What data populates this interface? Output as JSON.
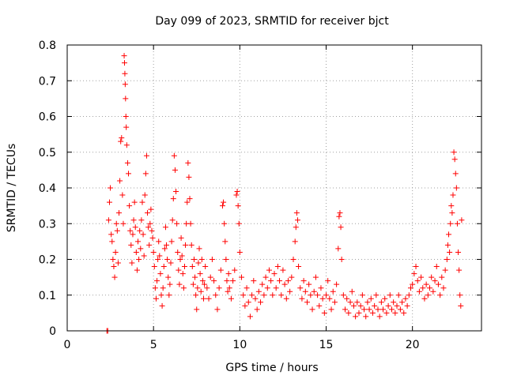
{
  "chart_data": {
    "type": "scatter",
    "title": "Day 099 of 2023, SRMTID for receiver bjct",
    "xlabel": "GPS time / hours",
    "ylabel": "SRMTID / TECUs",
    "xlim": [
      0,
      24
    ],
    "ylim": [
      0,
      0.8
    ],
    "xticks": [
      0,
      5,
      10,
      15,
      20
    ],
    "yticks": [
      0,
      0.1,
      0.2,
      0.3,
      0.4,
      0.5,
      0.6,
      0.7,
      0.8
    ],
    "xtick_labels": [
      "0",
      "5",
      "10",
      "15",
      "20"
    ],
    "ytick_labels": [
      "0",
      "0.1",
      "0.2",
      "0.3",
      "0.4",
      "0.5",
      "0.6",
      "0.7",
      "0.8"
    ],
    "grid": true,
    "marker": "+",
    "color": "#ff0000",
    "series": [
      {
        "name": "bjct",
        "points": [
          [
            2.3,
            0.0
          ],
          [
            2.35,
            0.0
          ],
          [
            2.4,
            0.31
          ],
          [
            2.45,
            0.36
          ],
          [
            2.5,
            0.4
          ],
          [
            2.55,
            0.27
          ],
          [
            2.6,
            0.25
          ],
          [
            2.65,
            0.2
          ],
          [
            2.7,
            0.18
          ],
          [
            2.75,
            0.15
          ],
          [
            2.8,
            0.22
          ],
          [
            2.85,
            0.3
          ],
          [
            2.9,
            0.28
          ],
          [
            2.95,
            0.19
          ],
          [
            3.0,
            0.33
          ],
          [
            3.05,
            0.42
          ],
          [
            3.1,
            0.53
          ],
          [
            3.15,
            0.54
          ],
          [
            3.2,
            0.38
          ],
          [
            3.25,
            0.3
          ],
          [
            3.3,
            0.77
          ],
          [
            3.32,
            0.75
          ],
          [
            3.34,
            0.72
          ],
          [
            3.36,
            0.69
          ],
          [
            3.38,
            0.65
          ],
          [
            3.4,
            0.6
          ],
          [
            3.42,
            0.57
          ],
          [
            3.45,
            0.52
          ],
          [
            3.5,
            0.47
          ],
          [
            3.55,
            0.44
          ],
          [
            3.6,
            0.35
          ],
          [
            3.65,
            0.28
          ],
          [
            3.7,
            0.24
          ],
          [
            3.75,
            0.19
          ],
          [
            3.8,
            0.27
          ],
          [
            3.85,
            0.31
          ],
          [
            3.9,
            0.36
          ],
          [
            3.95,
            0.29
          ],
          [
            4.0,
            0.22
          ],
          [
            4.05,
            0.17
          ],
          [
            4.1,
            0.25
          ],
          [
            4.15,
            0.2
          ],
          [
            4.2,
            0.28
          ],
          [
            4.25,
            0.23
          ],
          [
            4.3,
            0.31
          ],
          [
            4.35,
            0.36
          ],
          [
            4.4,
            0.27
          ],
          [
            4.45,
            0.21
          ],
          [
            4.5,
            0.38
          ],
          [
            4.55,
            0.44
          ],
          [
            4.6,
            0.49
          ],
          [
            4.65,
            0.33
          ],
          [
            4.7,
            0.29
          ],
          [
            4.75,
            0.24
          ],
          [
            4.8,
            0.3
          ],
          [
            4.85,
            0.34
          ],
          [
            4.9,
            0.28
          ],
          [
            4.95,
            0.26
          ],
          [
            5.0,
            0.22
          ],
          [
            5.05,
            0.18
          ],
          [
            5.1,
            0.12
          ],
          [
            5.15,
            0.09
          ],
          [
            5.2,
            0.14
          ],
          [
            5.25,
            0.2
          ],
          [
            5.3,
            0.25
          ],
          [
            5.35,
            0.21
          ],
          [
            5.4,
            0.16
          ],
          [
            5.45,
            0.1
          ],
          [
            5.5,
            0.07
          ],
          [
            5.55,
            0.12
          ],
          [
            5.6,
            0.18
          ],
          [
            5.65,
            0.23
          ],
          [
            5.7,
            0.29
          ],
          [
            5.75,
            0.24
          ],
          [
            5.8,
            0.2
          ],
          [
            5.85,
            0.15
          ],
          [
            5.9,
            0.1
          ],
          [
            5.95,
            0.13
          ],
          [
            6.0,
            0.19
          ],
          [
            6.05,
            0.25
          ],
          [
            6.1,
            0.31
          ],
          [
            6.15,
            0.37
          ],
          [
            6.2,
            0.49
          ],
          [
            6.25,
            0.45
          ],
          [
            6.3,
            0.39
          ],
          [
            6.35,
            0.3
          ],
          [
            6.4,
            0.22
          ],
          [
            6.45,
            0.17
          ],
          [
            6.5,
            0.13
          ],
          [
            6.55,
            0.2
          ],
          [
            6.6,
            0.26
          ],
          [
            6.65,
            0.21
          ],
          [
            6.7,
            0.16
          ],
          [
            6.75,
            0.12
          ],
          [
            6.8,
            0.18
          ],
          [
            6.85,
            0.24
          ],
          [
            6.9,
            0.3
          ],
          [
            6.95,
            0.36
          ],
          [
            7.0,
            0.47
          ],
          [
            7.05,
            0.43
          ],
          [
            7.1,
            0.37
          ],
          [
            7.15,
            0.3
          ],
          [
            7.2,
            0.24
          ],
          [
            7.25,
            0.18
          ],
          [
            7.3,
            0.13
          ],
          [
            7.35,
            0.2
          ],
          [
            7.4,
            0.15
          ],
          [
            7.45,
            0.1
          ],
          [
            7.5,
            0.06
          ],
          [
            7.55,
            0.12
          ],
          [
            7.6,
            0.19
          ],
          [
            7.65,
            0.23
          ],
          [
            7.7,
            0.16
          ],
          [
            7.75,
            0.11
          ],
          [
            7.8,
            0.2
          ],
          [
            7.85,
            0.14
          ],
          [
            7.9,
            0.09
          ],
          [
            7.95,
            0.13
          ],
          [
            8.0,
            0.18
          ],
          [
            8.1,
            0.12
          ],
          [
            8.2,
            0.09
          ],
          [
            8.3,
            0.15
          ],
          [
            8.4,
            0.2
          ],
          [
            8.5,
            0.14
          ],
          [
            8.6,
            0.1
          ],
          [
            8.7,
            0.06
          ],
          [
            8.8,
            0.12
          ],
          [
            8.9,
            0.17
          ],
          [
            9.0,
            0.35
          ],
          [
            9.05,
            0.36
          ],
          [
            9.1,
            0.3
          ],
          [
            9.15,
            0.25
          ],
          [
            9.2,
            0.2
          ],
          [
            9.25,
            0.14
          ],
          [
            9.3,
            0.11
          ],
          [
            9.35,
            0.16
          ],
          [
            9.4,
            0.12
          ],
          [
            9.5,
            0.09
          ],
          [
            9.6,
            0.14
          ],
          [
            9.7,
            0.17
          ],
          [
            9.8,
            0.38
          ],
          [
            9.85,
            0.39
          ],
          [
            9.9,
            0.35
          ],
          [
            9.95,
            0.3
          ],
          [
            10.0,
            0.22
          ],
          [
            10.1,
            0.15
          ],
          [
            10.2,
            0.1
          ],
          [
            10.3,
            0.07
          ],
          [
            10.4,
            0.12
          ],
          [
            10.5,
            0.08
          ],
          [
            10.6,
            0.04
          ],
          [
            10.7,
            0.1
          ],
          [
            10.8,
            0.14
          ],
          [
            10.9,
            0.09
          ],
          [
            11.0,
            0.06
          ],
          [
            11.1,
            0.11
          ],
          [
            11.2,
            0.08
          ],
          [
            11.3,
            0.13
          ],
          [
            11.4,
            0.1
          ],
          [
            11.5,
            0.15
          ],
          [
            11.6,
            0.12
          ],
          [
            11.7,
            0.17
          ],
          [
            11.8,
            0.14
          ],
          [
            11.9,
            0.1
          ],
          [
            12.0,
            0.16
          ],
          [
            12.1,
            0.12
          ],
          [
            12.2,
            0.18
          ],
          [
            12.3,
            0.14
          ],
          [
            12.4,
            0.1
          ],
          [
            12.5,
            0.17
          ],
          [
            12.6,
            0.13
          ],
          [
            12.7,
            0.09
          ],
          [
            12.8,
            0.14
          ],
          [
            12.9,
            0.11
          ],
          [
            13.0,
            0.15
          ],
          [
            13.1,
            0.2
          ],
          [
            13.2,
            0.25
          ],
          [
            13.25,
            0.29
          ],
          [
            13.3,
            0.33
          ],
          [
            13.35,
            0.31
          ],
          [
            13.4,
            0.18
          ],
          [
            13.5,
            0.12
          ],
          [
            13.6,
            0.09
          ],
          [
            13.7,
            0.14
          ],
          [
            13.8,
            0.11
          ],
          [
            13.9,
            0.08
          ],
          [
            14.0,
            0.13
          ],
          [
            14.1,
            0.1
          ],
          [
            14.2,
            0.06
          ],
          [
            14.3,
            0.11
          ],
          [
            14.4,
            0.15
          ],
          [
            14.5,
            0.1
          ],
          [
            14.6,
            0.07
          ],
          [
            14.7,
            0.12
          ],
          [
            14.8,
            0.09
          ],
          [
            14.9,
            0.05
          ],
          [
            15.0,
            0.1
          ],
          [
            15.1,
            0.14
          ],
          [
            15.2,
            0.09
          ],
          [
            15.3,
            0.06
          ],
          [
            15.4,
            0.11
          ],
          [
            15.5,
            0.08
          ],
          [
            15.6,
            0.13
          ],
          [
            15.7,
            0.23
          ],
          [
            15.75,
            0.32
          ],
          [
            15.8,
            0.33
          ],
          [
            15.85,
            0.29
          ],
          [
            15.9,
            0.2
          ],
          [
            16.0,
            0.1
          ],
          [
            16.1,
            0.06
          ],
          [
            16.2,
            0.09
          ],
          [
            16.3,
            0.05
          ],
          [
            16.4,
            0.08
          ],
          [
            16.5,
            0.11
          ],
          [
            16.6,
            0.07
          ],
          [
            16.7,
            0.04
          ],
          [
            16.8,
            0.08
          ],
          [
            16.9,
            0.05
          ],
          [
            17.0,
            0.07
          ],
          [
            17.1,
            0.1
          ],
          [
            17.2,
            0.06
          ],
          [
            17.3,
            0.04
          ],
          [
            17.4,
            0.08
          ],
          [
            17.5,
            0.06
          ],
          [
            17.6,
            0.09
          ],
          [
            17.7,
            0.05
          ],
          [
            17.8,
            0.07
          ],
          [
            17.9,
            0.1
          ],
          [
            18.0,
            0.06
          ],
          [
            18.1,
            0.04
          ],
          [
            18.2,
            0.08
          ],
          [
            18.3,
            0.06
          ],
          [
            18.4,
            0.09
          ],
          [
            18.5,
            0.05
          ],
          [
            18.6,
            0.07
          ],
          [
            18.7,
            0.1
          ],
          [
            18.8,
            0.06
          ],
          [
            18.9,
            0.08
          ],
          [
            19.0,
            0.05
          ],
          [
            19.1,
            0.07
          ],
          [
            19.2,
            0.1
          ],
          [
            19.3,
            0.06
          ],
          [
            19.4,
            0.08
          ],
          [
            19.5,
            0.05
          ],
          [
            19.6,
            0.09
          ],
          [
            19.7,
            0.07
          ],
          [
            19.8,
            0.1
          ],
          [
            19.9,
            0.12
          ],
          [
            20.0,
            0.13
          ],
          [
            20.1,
            0.16
          ],
          [
            20.2,
            0.18
          ],
          [
            20.3,
            0.14
          ],
          [
            20.4,
            0.11
          ],
          [
            20.5,
            0.15
          ],
          [
            20.6,
            0.12
          ],
          [
            20.7,
            0.09
          ],
          [
            20.8,
            0.13
          ],
          [
            20.9,
            0.1
          ],
          [
            21.0,
            0.12
          ],
          [
            21.1,
            0.15
          ],
          [
            21.2,
            0.11
          ],
          [
            21.3,
            0.14
          ],
          [
            21.4,
            0.18
          ],
          [
            21.5,
            0.13
          ],
          [
            21.6,
            0.1
          ],
          [
            21.7,
            0.15
          ],
          [
            21.8,
            0.12
          ],
          [
            21.9,
            0.17
          ],
          [
            22.0,
            0.2
          ],
          [
            22.05,
            0.24
          ],
          [
            22.1,
            0.27
          ],
          [
            22.15,
            0.22
          ],
          [
            22.2,
            0.3
          ],
          [
            22.25,
            0.35
          ],
          [
            22.3,
            0.33
          ],
          [
            22.35,
            0.38
          ],
          [
            22.4,
            0.5
          ],
          [
            22.45,
            0.48
          ],
          [
            22.5,
            0.44
          ],
          [
            22.55,
            0.4
          ],
          [
            22.6,
            0.3
          ],
          [
            22.65,
            0.22
          ],
          [
            22.7,
            0.17
          ],
          [
            22.75,
            0.1
          ],
          [
            22.8,
            0.07
          ],
          [
            22.85,
            0.31
          ]
        ]
      }
    ]
  }
}
